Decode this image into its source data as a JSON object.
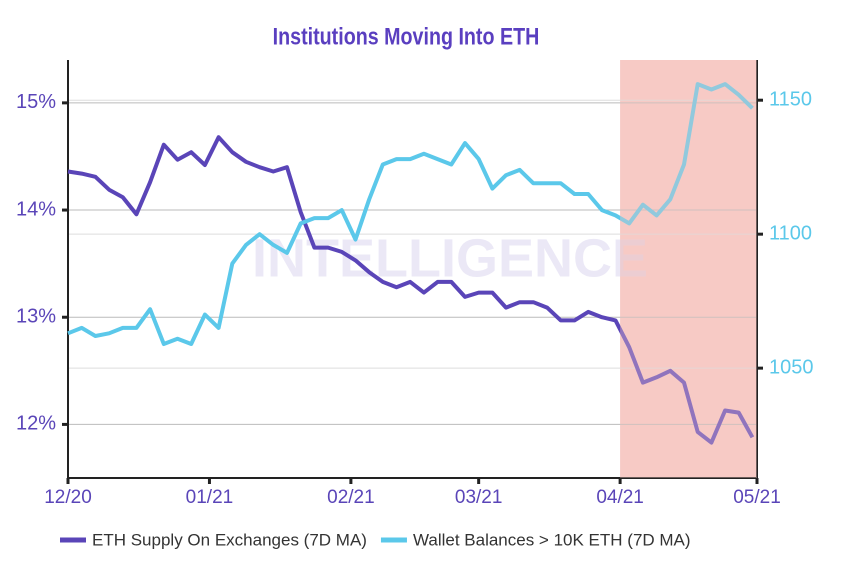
{
  "chart_data": {
    "type": "line",
    "title": "Institutions Moving Into ETH",
    "watermark": "INTELLIGENCE",
    "x": [
      0,
      3,
      6,
      9,
      12,
      15,
      18,
      21,
      24,
      27,
      30,
      33,
      36,
      39,
      42,
      45,
      48,
      51,
      54,
      57,
      60,
      63,
      66,
      69,
      72,
      75,
      78,
      81,
      84,
      87,
      90,
      93,
      96,
      99,
      102,
      105,
      108,
      111,
      114,
      117,
      120,
      123,
      126,
      129,
      132,
      135,
      138,
      141,
      144,
      147,
      150
    ],
    "xlim": [
      0,
      151
    ],
    "xticks": [
      {
        "value": 0,
        "label": "12/20"
      },
      {
        "value": 31,
        "label": "01/21"
      },
      {
        "value": 62,
        "label": "02/21"
      },
      {
        "value": 90,
        "label": "03/21"
      },
      {
        "value": 121,
        "label": "04/21"
      },
      {
        "value": 151,
        "label": "05/21"
      }
    ],
    "highlight": [
      121,
      151
    ],
    "highlight_color": "#f7cac5",
    "ylim": [
      11.5,
      15.4
    ],
    "yticks": [
      {
        "value": 12,
        "label": "12%"
      },
      {
        "value": 13,
        "label": "13%"
      },
      {
        "value": 14,
        "label": "14%"
      },
      {
        "value": 15,
        "label": "15%"
      }
    ],
    "y2lim": [
      1009,
      1165
    ],
    "y2ticks": [
      1050,
      1100,
      1150
    ],
    "grid": true,
    "legend": "bottom",
    "series": [
      {
        "name": "ETH Supply On Exchanges (7D MA)",
        "color": "#5a45b8",
        "values": [
          14.36,
          14.34,
          14.31,
          14.19,
          14.12,
          13.96,
          14.26,
          14.61,
          14.47,
          14.54,
          14.42,
          14.68,
          14.54,
          14.45,
          14.4,
          14.36,
          14.4,
          13.98,
          13.65,
          13.65,
          13.61,
          13.53,
          13.42,
          13.33,
          13.28,
          13.33,
          13.23,
          13.33,
          13.33,
          13.19,
          13.23,
          13.23,
          13.09,
          13.14,
          13.14,
          13.09,
          12.97,
          12.97,
          13.05,
          13.0,
          12.97,
          12.72,
          12.39,
          12.44,
          12.5,
          12.39,
          11.93,
          11.83,
          12.13,
          12.11,
          11.88
        ]
      },
      {
        "name": "Wallet Balances > 10K ETH (7D MA)",
        "color": "#5bc8ea",
        "axis": "y2",
        "values": [
          1063,
          1065,
          1062,
          1063,
          1065,
          1065,
          1072,
          1059,
          1061,
          1059,
          1070,
          1065,
          1089,
          1096,
          1100,
          1096,
          1093,
          1104,
          1106,
          1106,
          1109,
          1098,
          1113,
          1126,
          1128,
          1128,
          1130,
          1128,
          1126,
          1134,
          1128,
          1117,
          1122,
          1124,
          1119,
          1119,
          1119,
          1115,
          1115,
          1109,
          1107,
          1104,
          1111,
          1107,
          1113,
          1126,
          1156,
          1154,
          1156,
          1152,
          1147
        ]
      }
    ]
  }
}
